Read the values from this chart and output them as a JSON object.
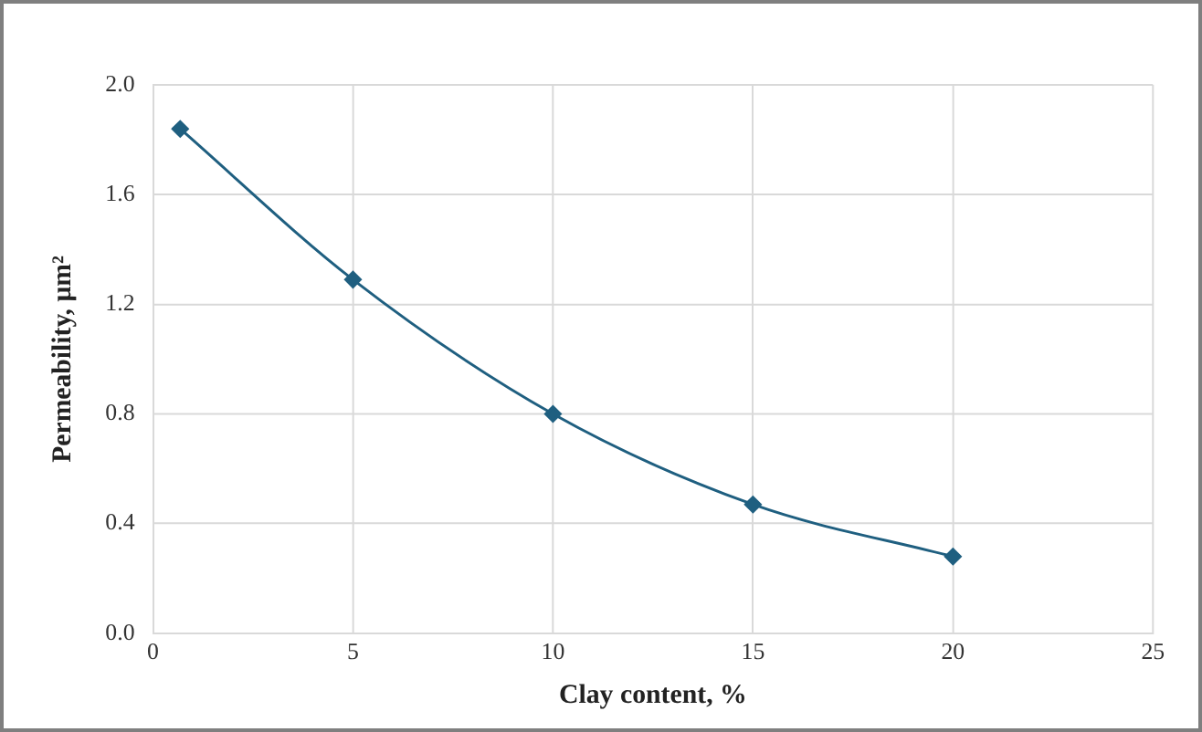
{
  "chart_data": {
    "type": "line",
    "xlabel": "Clay content, %",
    "ylabel": "Permeability, μm²",
    "x": [
      0.68,
      5,
      10,
      15,
      20
    ],
    "series": [
      {
        "color": "#1f5f80",
        "values": [
          1.84,
          1.29,
          0.8,
          0.47,
          0.28
        ]
      }
    ],
    "xlim": [
      0,
      25
    ],
    "xticks": [
      0,
      5,
      10,
      15,
      20,
      25
    ],
    "ylim": [
      0,
      2
    ],
    "yticks": [
      {
        "value": 0,
        "label": "0.0"
      },
      {
        "value": 0.4,
        "label": "0.4"
      },
      {
        "value": 0.8,
        "label": "0.8"
      },
      {
        "value": 1.2,
        "label": "1.2"
      },
      {
        "value": 1.6,
        "label": "1.6"
      },
      {
        "value": 2,
        "label": "2.0"
      }
    ],
    "grid": true,
    "legend": false,
    "marker": "diamond",
    "line_style": "solid"
  }
}
